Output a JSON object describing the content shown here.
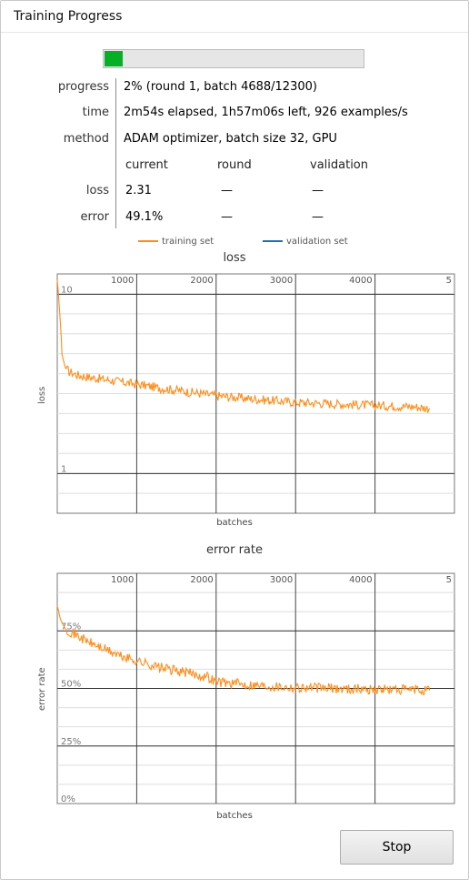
{
  "window": {
    "title": "Training Progress"
  },
  "progress_bar": {
    "fraction": 0.02,
    "fill_color": "#06b025"
  },
  "info": {
    "rows": [
      {
        "label": "progress",
        "value": "2% (round 1, batch 4688/12300)"
      },
      {
        "label": "time",
        "value": "2m54s elapsed, 1h57m06s left, 926 examples/s"
      },
      {
        "label": "method",
        "value": "ADAM optimizer, batch size 32, GPU"
      }
    ],
    "columns": [
      "current",
      "round",
      "validation"
    ],
    "metrics": [
      {
        "label": "loss",
        "current": "2.31",
        "round": "—",
        "validation": "—"
      },
      {
        "label": "error",
        "current": "49.1%",
        "round": "—",
        "validation": "—"
      }
    ]
  },
  "legend": {
    "training": {
      "label": "training set",
      "color": "#ff8c1a"
    },
    "validation": {
      "label": "validation set",
      "color": "#1f6fb5"
    }
  },
  "chart_data": [
    {
      "type": "line",
      "title": "loss",
      "xlabel": "batches",
      "ylabel": "loss",
      "yscale": "log",
      "xlim": [
        0,
        5000
      ],
      "ylim": [
        0.6,
        13
      ],
      "x_ticks": [
        "1000",
        "2000",
        "3000",
        "4000",
        "5"
      ],
      "y_ticks": [
        {
          "value": 10,
          "label": "10"
        },
        {
          "value": 1,
          "label": "1"
        }
      ],
      "series": [
        {
          "name": "training set",
          "x": [
            0,
            30,
            60,
            100,
            150,
            250,
            400,
            600,
            800,
            1000,
            1300,
            1600,
            2000,
            2500,
            3000,
            3500,
            4000,
            4500,
            4688
          ],
          "values": [
            12.0,
            8.0,
            4.6,
            3.9,
            3.7,
            3.55,
            3.45,
            3.35,
            3.25,
            3.15,
            3.0,
            2.88,
            2.72,
            2.6,
            2.5,
            2.45,
            2.4,
            2.36,
            2.31
          ]
        }
      ]
    },
    {
      "type": "line",
      "title": "error rate",
      "xlabel": "batches",
      "ylabel": "error rate",
      "xlim": [
        0,
        5000
      ],
      "ylim": [
        0,
        100
      ],
      "x_ticks": [
        "1000",
        "2000",
        "3000",
        "4000",
        "5"
      ],
      "y_ticks": [
        {
          "value": 75,
          "label": "75%"
        },
        {
          "value": 50,
          "label": "50%"
        },
        {
          "value": 25,
          "label": "25%"
        },
        {
          "value": 0,
          "label": "0%"
        }
      ],
      "series": [
        {
          "name": "training set",
          "x": [
            0,
            40,
            100,
            200,
            400,
            600,
            800,
            1000,
            1300,
            1600,
            1900,
            2000,
            2300,
            2700,
            3000,
            3500,
            4000,
            4500,
            4688
          ],
          "values": [
            86,
            80,
            76,
            74,
            70,
            67,
            64,
            62,
            59,
            57,
            55,
            53,
            52,
            51,
            50.5,
            50,
            49.6,
            49.3,
            49.1
          ]
        }
      ]
    }
  ],
  "buttons": {
    "stop": "Stop"
  }
}
